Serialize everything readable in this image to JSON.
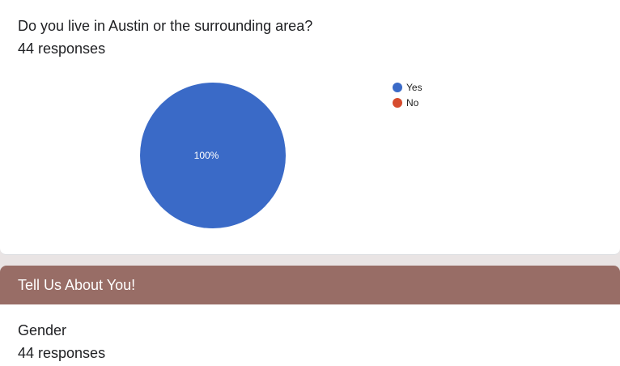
{
  "question": {
    "title": "Do you live in Austin or the surrounding area?",
    "responses": "44 responses"
  },
  "chart_data": {
    "type": "pie",
    "categories": [
      "Yes",
      "No"
    ],
    "values": [
      100,
      0
    ],
    "colors": [
      "#3a6ac7",
      "#d64c2e"
    ],
    "slice_labels": [
      "100%",
      ""
    ],
    "legend_position": "right"
  },
  "section": {
    "title": "Tell Us About You!",
    "color": "#986d66"
  },
  "next_question": {
    "title": "Gender",
    "responses": "44 responses"
  }
}
